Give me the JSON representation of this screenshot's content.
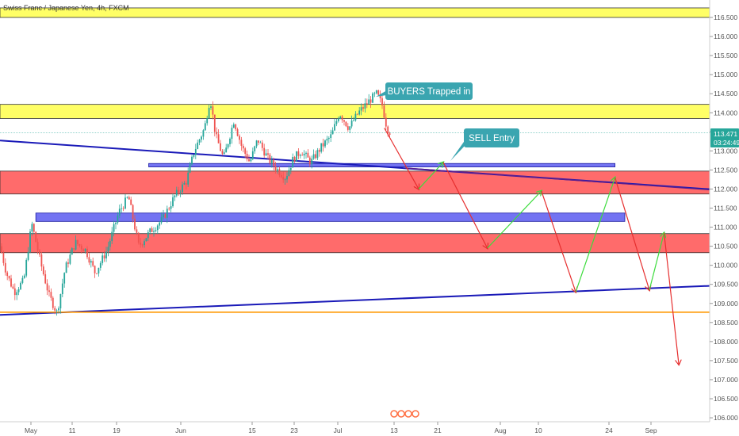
{
  "header": {
    "symbol_line": "Swiss Franc / Japanese Yen, 4h, FXCM"
  },
  "colors": {
    "up": "#26a69a",
    "down": "#ef5350",
    "yellow_zone": "#ffff66",
    "red_zone": "#ff6b6b",
    "blue_zone": "#5b5bf0",
    "trend_line": "#1a1ab8",
    "purple_line": "#5b1d8c",
    "orange_line": "#ff9800",
    "arrow_red": "#e62e2e",
    "arrow_green": "#3ddc3d",
    "callout_bg": "#3aa5b0",
    "price_box": "#26a69a"
  },
  "chart_data": {
    "type": "candlestick",
    "ylim": [
      106.0,
      116.75
    ],
    "y_ticks": [
      "116.500",
      "116.000",
      "115.500",
      "115.000",
      "114.500",
      "114.000",
      "113.500",
      "113.000",
      "112.500",
      "112.000",
      "111.500",
      "111.000",
      "110.500",
      "110.000",
      "109.500",
      "109.000",
      "108.500",
      "108.000",
      "107.500",
      "107.000",
      "106.500",
      "106.000"
    ],
    "x_ticks": [
      "May",
      "11",
      "19",
      "Jun",
      "15",
      "23",
      "Jul",
      "13",
      "21",
      "Aug",
      "10",
      "24",
      "Sep"
    ],
    "last_price": "113.471",
    "countdown": "03:24:49",
    "zones": [
      {
        "kind": "yellow",
        "y1": 116.75,
        "y2": 116.5
      },
      {
        "kind": "yellow",
        "y1": 114.22,
        "y2": 113.85
      },
      {
        "kind": "red",
        "y1": 112.47,
        "y2": 111.87
      },
      {
        "kind": "red",
        "y1": 110.83,
        "y2": 110.33
      },
      {
        "kind": "blue",
        "x1": "May 25",
        "x2": "Aug 28",
        "y1": 112.67,
        "y2": 112.58
      },
      {
        "kind": "blue",
        "x1": "May 02",
        "x2": "Aug 30",
        "y1": 111.37,
        "y2": 111.15
      }
    ],
    "lines": [
      {
        "kind": "trend",
        "from": [
          "Apr 25",
          113.27
        ],
        "to": [
          "Sep 18",
          111.98
        ]
      },
      {
        "kind": "trend",
        "from": [
          "Apr 25",
          108.7
        ],
        "to": [
          "Sep 18",
          109.47
        ]
      },
      {
        "kind": "horizontal",
        "y": 108.77
      },
      {
        "kind": "horizontal_thin",
        "y": 113.47
      }
    ],
    "projection_path": [
      [
        "Jul 12",
        113.6,
        "down"
      ],
      [
        "Jul 19",
        112.0,
        "up"
      ],
      [
        "Jul 24",
        112.7,
        "down"
      ],
      [
        "Aug 02",
        110.45,
        "up"
      ],
      [
        "Aug 13",
        111.95,
        "down"
      ],
      [
        "Aug 20",
        109.3,
        "up"
      ],
      [
        "Aug 28",
        112.3,
        "down"
      ],
      [
        "Sep 04",
        109.35,
        "up"
      ],
      [
        "Sep 07",
        110.85,
        "down"
      ],
      [
        "Sep 10",
        107.4,
        "end"
      ]
    ],
    "annotations": [
      {
        "name": "buyers-callout",
        "text": "BUYERS Trapped in"
      },
      {
        "name": "sell-callout",
        "text": "SELL Entry"
      }
    ]
  }
}
